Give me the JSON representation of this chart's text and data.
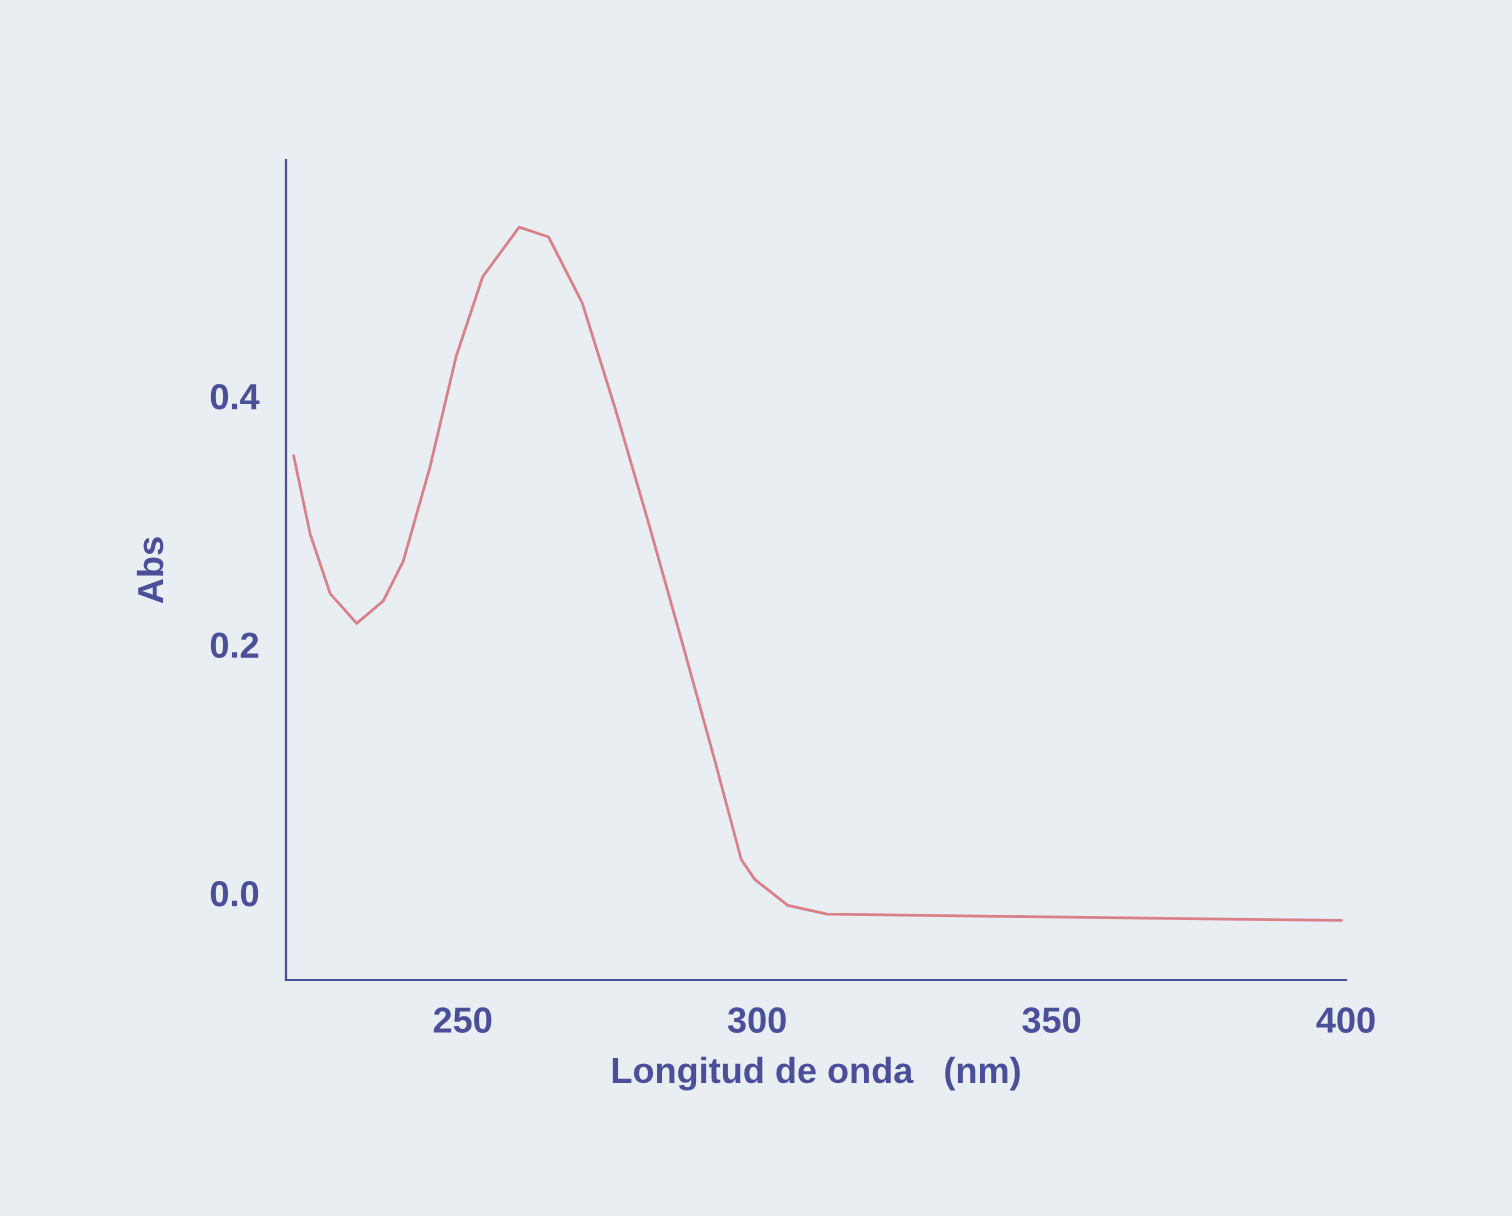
{
  "chart_data": {
    "type": "line",
    "xlabel": "Longitud de onda   (nm)",
    "ylabel": "Abs",
    "x": [
      221.3,
      224.1,
      227.5,
      232.0,
      236.5,
      239.9,
      244.4,
      248.9,
      253.4,
      259.6,
      264.6,
      270.3,
      275.9,
      281.5,
      287.2,
      292.8,
      297.3,
      299.6,
      305.2,
      311.9,
      345.7,
      379.5,
      399.2
    ],
    "series": [
      {
        "color": "#d9808a",
        "values": [
          0.352,
          0.289,
          0.241,
          0.217,
          0.235,
          0.267,
          0.342,
          0.432,
          0.496,
          0.536,
          0.528,
          0.475,
          0.39,
          0.299,
          0.203,
          0.107,
          0.027,
          0.011,
          -0.01,
          -0.017,
          -0.019,
          -0.021,
          -0.022
        ]
      }
    ],
    "xlim": [
      220,
      400
    ],
    "xticks": [
      250,
      300,
      350,
      400
    ],
    "ylim": [
      -0.07,
      0.59
    ],
    "yticks": [
      {
        "value": 0,
        "label": "0.0"
      },
      {
        "value": 0.2,
        "label": "0.2"
      },
      {
        "value": 0.4,
        "label": "0.4"
      }
    ],
    "grid": false,
    "legend": false,
    "marker": "none",
    "line_style": "solid"
  }
}
